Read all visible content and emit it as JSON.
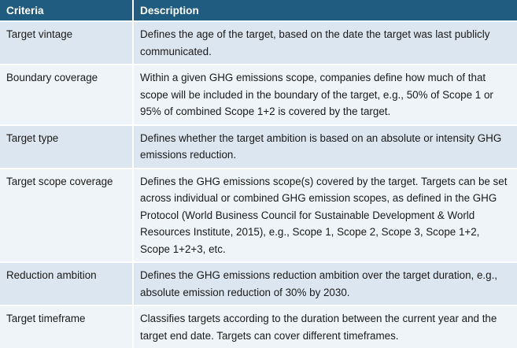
{
  "table": {
    "headers": [
      "Criteria",
      "Description"
    ],
    "rows": [
      {
        "criteria": "Target vintage",
        "description": "Defines the age of the target, based on the date the target was last publicly communicated."
      },
      {
        "criteria": "Boundary coverage",
        "description": "Within a given GHG emissions scope, companies define how much of that scope will be included in the boundary of the target, e.g., 50% of Scope 1 or 95% of combined Scope 1+2 is covered by the target."
      },
      {
        "criteria": "Target type",
        "description": "Defines whether the target ambition is based on an absolute or intensity GHG emissions reduction."
      },
      {
        "criteria": "Target scope coverage",
        "description": "Defines the GHG emissions scope(s) covered by the target. Targets can be set across individual or combined GHG emission scopes, as defined in the GHG Protocol (World Business Council for Sustainable Development & World Resources Institute, 2015), e.g., Scope 1, Scope 2, Scope 3, Scope 1+2, Scope 1+2+3, etc."
      },
      {
        "criteria": "Reduction ambition",
        "description": "Defines the GHG emissions reduction ambition over the target duration, e.g., absolute emission reduction of 30% by 2030."
      },
      {
        "criteria": "Target timeframe",
        "description": "Classifies targets according to the duration between the current year and the target end date. Targets can cover different timeframes."
      }
    ]
  },
  "colors": {
    "header_bg": "#1f5c80",
    "row_odd": "#dce6f0",
    "row_even": "#eff4f8"
  }
}
